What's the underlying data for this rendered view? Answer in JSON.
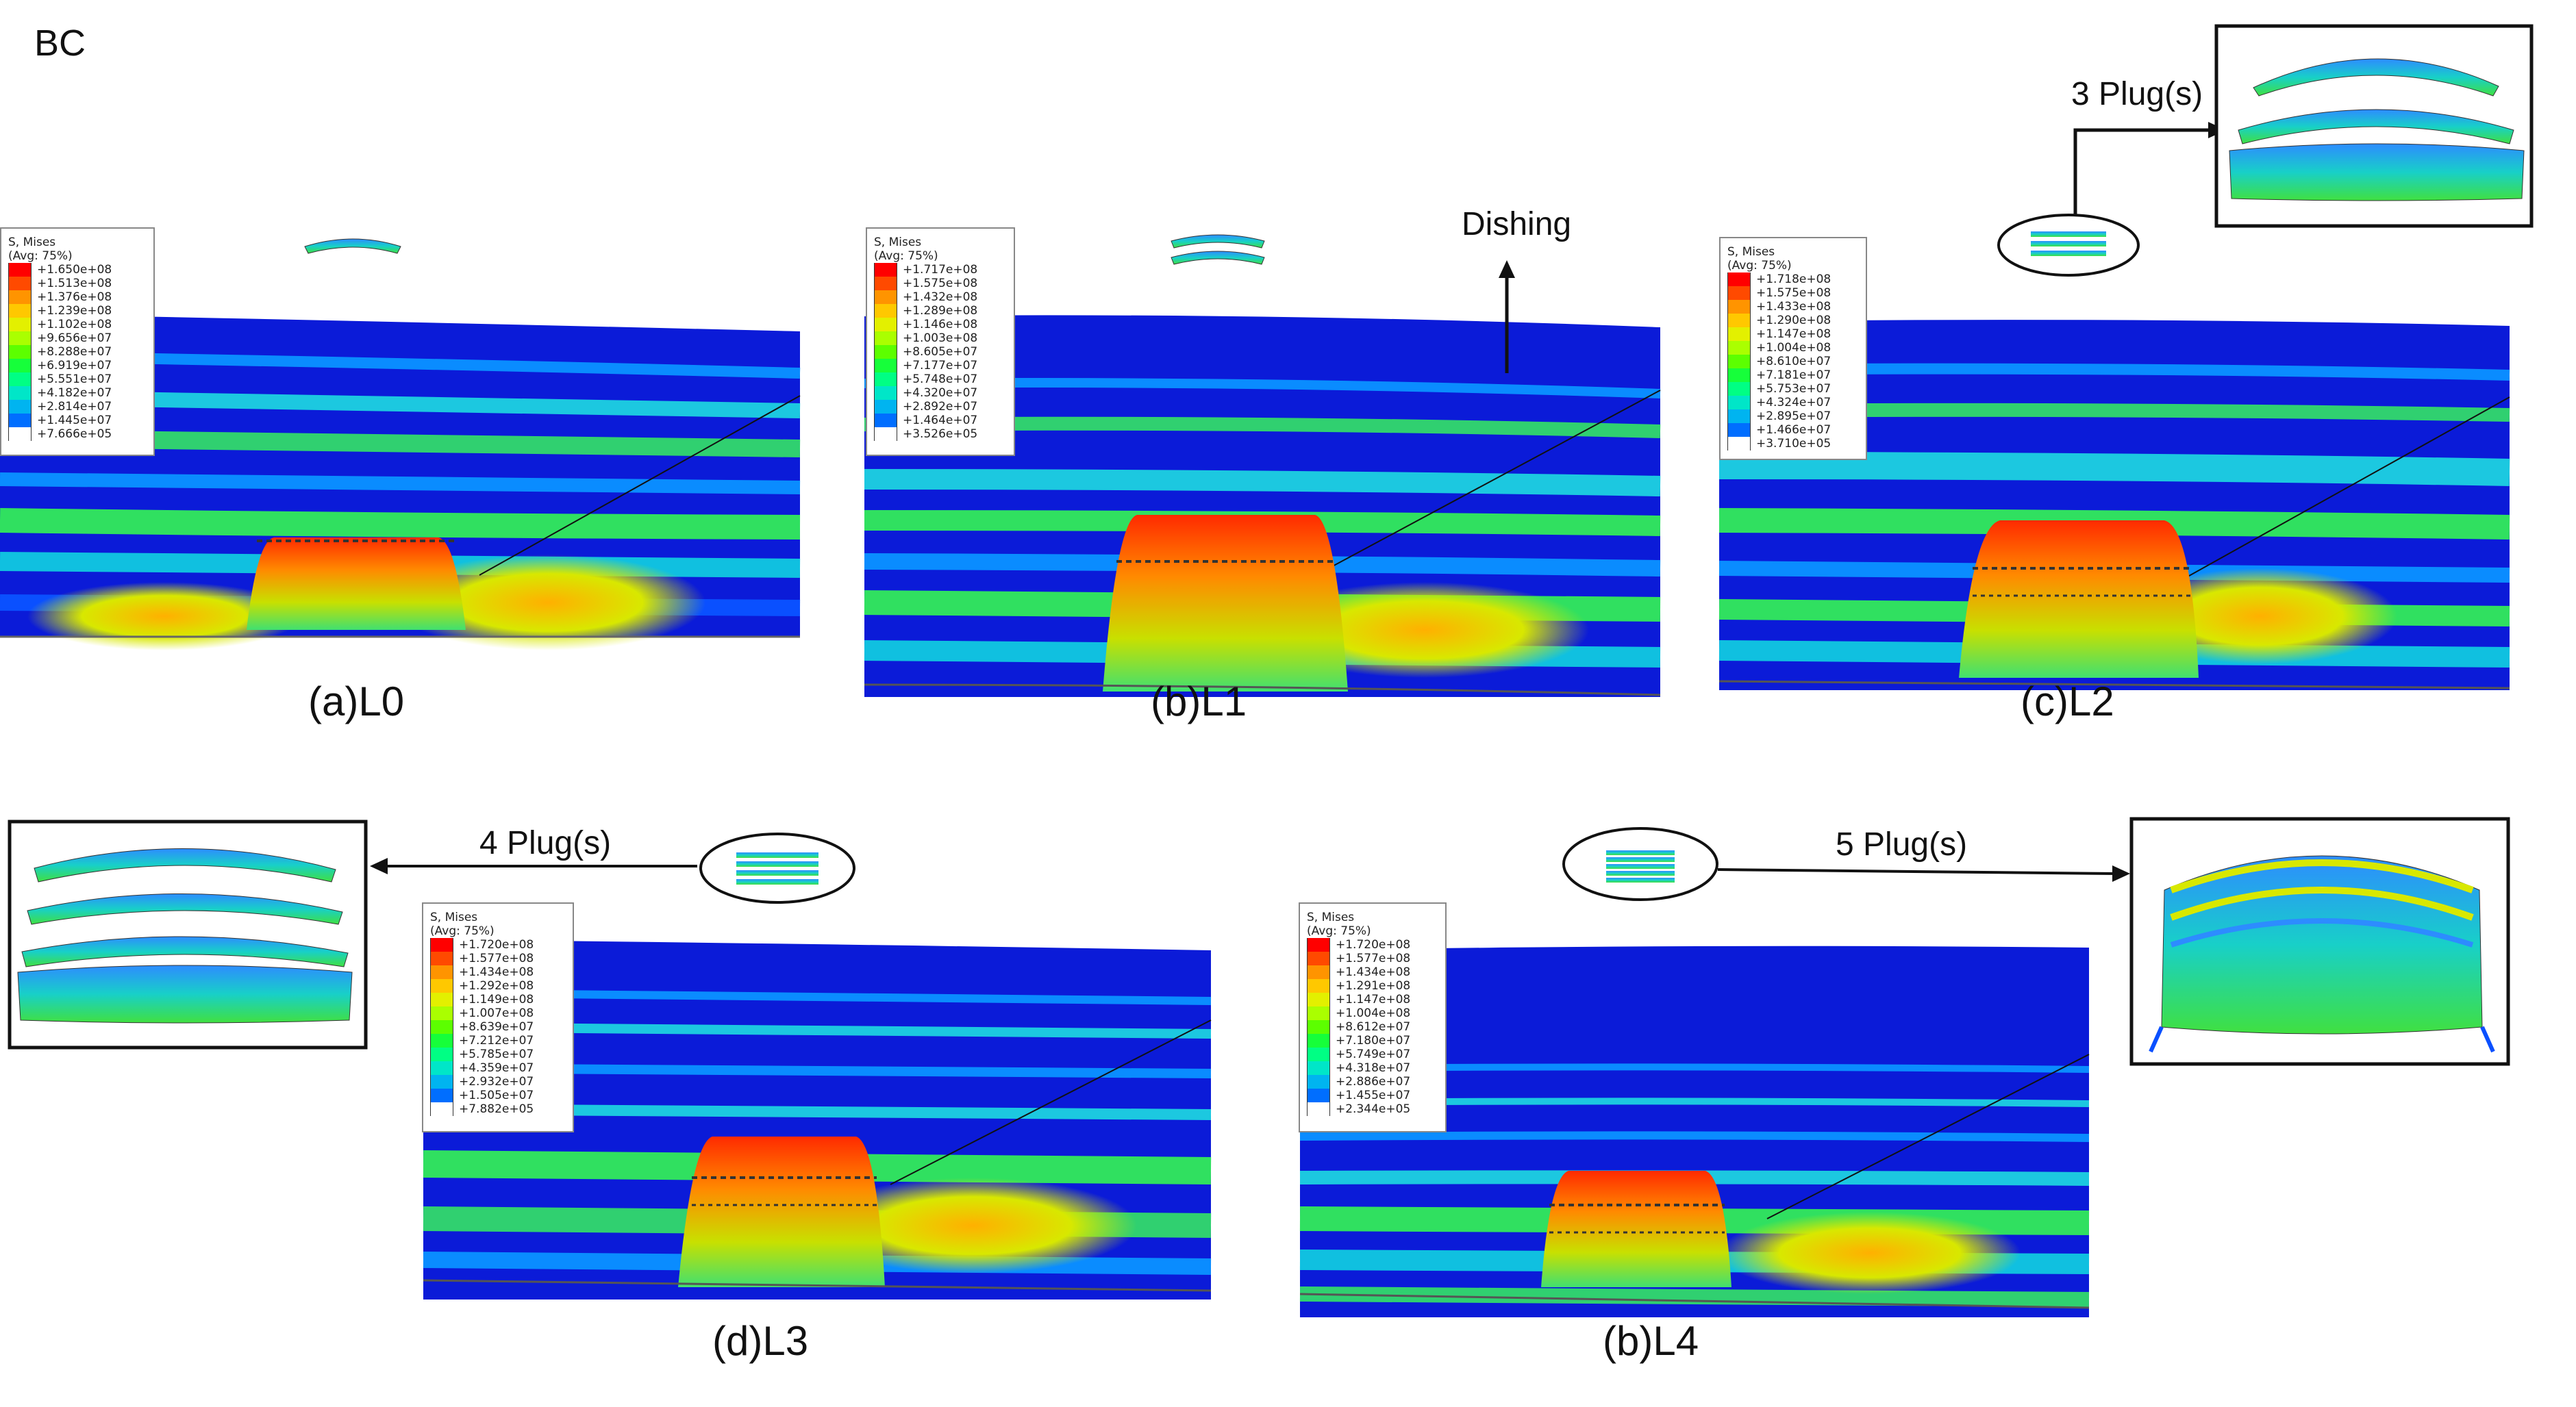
{
  "figure": {
    "corner_label": "BC",
    "legend_title": [
      "S, Mises",
      "(Avg: 75%)"
    ],
    "legend_colors": [
      "#ff0000",
      "#ff4a00",
      "#ff9400",
      "#ffc800",
      "#e3f000",
      "#aaff00",
      "#5cff00",
      "#16ff3a",
      "#00ff84",
      "#00e6c8",
      "#00b4f0",
      "#006eff",
      "#0000ff"
    ],
    "panels": [
      {
        "id": "a",
        "caption": "(a)L0",
        "plugs": 1,
        "legend_values": [
          "+1.650e+08",
          "+1.513e+08",
          "+1.376e+08",
          "+1.239e+08",
          "+1.102e+08",
          "+9.656e+07",
          "+8.288e+07",
          "+6.919e+07",
          "+5.551e+07",
          "+4.182e+07",
          "+2.814e+07",
          "+1.445e+07",
          "+7.666e+05"
        ]
      },
      {
        "id": "b",
        "caption": "(b)L1",
        "plugs": 2,
        "legend_values": [
          "+1.717e+08",
          "+1.575e+08",
          "+1.432e+08",
          "+1.289e+08",
          "+1.146e+08",
          "+1.003e+08",
          "+8.605e+07",
          "+7.177e+07",
          "+5.748e+07",
          "+4.320e+07",
          "+2.892e+07",
          "+1.464e+07",
          "+3.526e+05"
        ]
      },
      {
        "id": "c",
        "caption": "(c)L2",
        "plugs": 3,
        "legend_values": [
          "+1.718e+08",
          "+1.575e+08",
          "+1.433e+08",
          "+1.290e+08",
          "+1.147e+08",
          "+1.004e+08",
          "+8.610e+07",
          "+7.181e+07",
          "+5.753e+07",
          "+4.324e+07",
          "+2.895e+07",
          "+1.466e+07",
          "+3.710e+05"
        ]
      },
      {
        "id": "d",
        "caption": "(d)L3",
        "plugs": 4,
        "legend_values": [
          "+1.720e+08",
          "+1.577e+08",
          "+1.434e+08",
          "+1.292e+08",
          "+1.149e+08",
          "+1.007e+08",
          "+8.639e+07",
          "+7.212e+07",
          "+5.785e+07",
          "+4.359e+07",
          "+2.932e+07",
          "+1.505e+07",
          "+7.882e+05"
        ]
      },
      {
        "id": "e",
        "caption": "(b)L4",
        "plugs": 5,
        "legend_values": [
          "+1.720e+08",
          "+1.577e+08",
          "+1.434e+08",
          "+1.291e+08",
          "+1.147e+08",
          "+1.004e+08",
          "+8.612e+07",
          "+7.180e+07",
          "+5.749e+07",
          "+4.318e+07",
          "+2.886e+07",
          "+1.455e+07",
          "+2.344e+05"
        ]
      }
    ],
    "annotations": {
      "dishing": "Dishing",
      "plugs_c": "3 Plug(s)",
      "plugs_d": "4 Plug(s)",
      "plugs_e": "5 Plug(s)"
    }
  }
}
